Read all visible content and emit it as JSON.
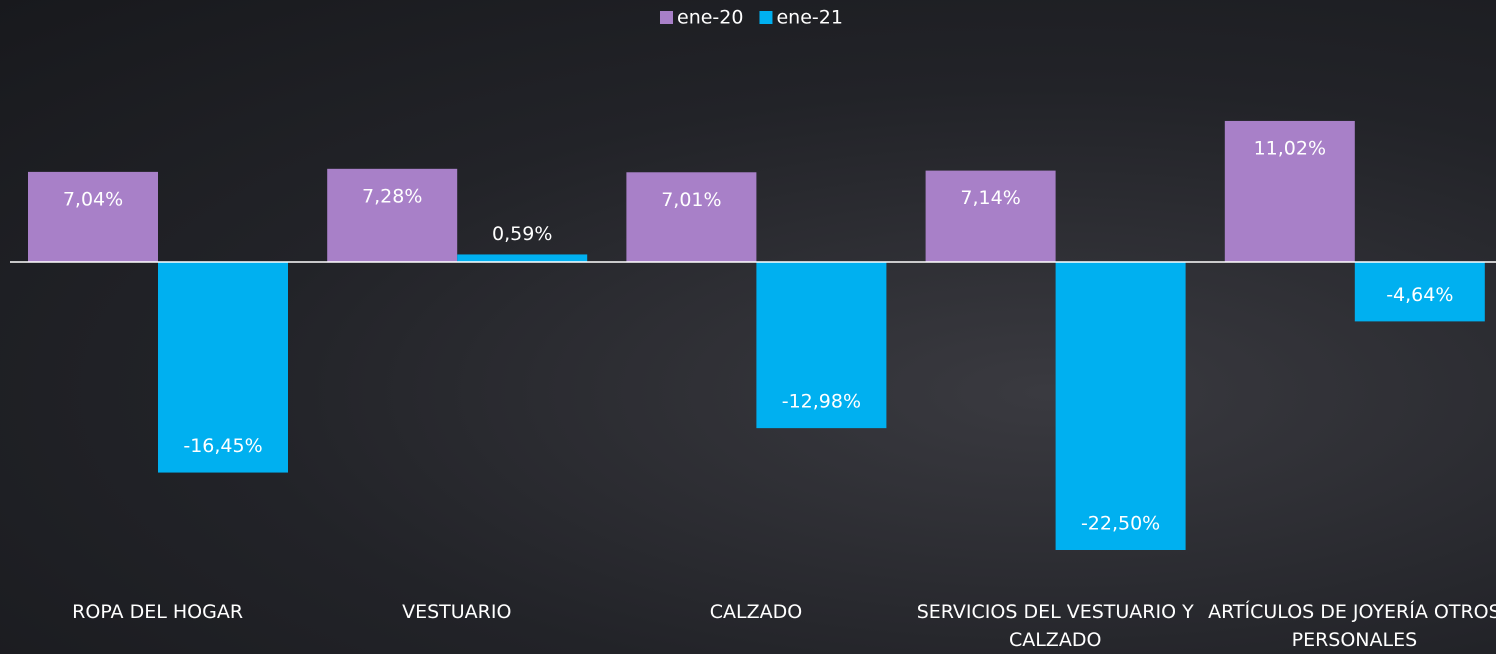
{
  "chart_data": {
    "type": "bar",
    "categories": [
      "ROPA DEL HOGAR",
      "VESTUARIO",
      "CALZADO",
      "SERVICIOS DEL VESTUARIO Y CALZADO",
      "ARTÍCULOS DE JOYERÍA OTROS PERSONALES"
    ],
    "series": [
      {
        "name": "ene-20",
        "color": "#a880c8",
        "values": [
          7.04,
          7.28,
          7.01,
          7.14,
          11.02
        ],
        "value_labels": [
          "7,04%",
          "7,28%",
          "7,01%",
          "7,14%",
          "11,02%"
        ]
      },
      {
        "name": "ene-21",
        "color": "#00b0f0",
        "values": [
          -16.45,
          0.59,
          -12.98,
          -22.5,
          -4.64
        ],
        "value_labels": [
          "-16,45%",
          "0,59%",
          "-12,98%",
          "-22,50%",
          "-4,64%"
        ]
      }
    ],
    "ylim": [
      -25,
      15
    ],
    "legend": "top"
  }
}
